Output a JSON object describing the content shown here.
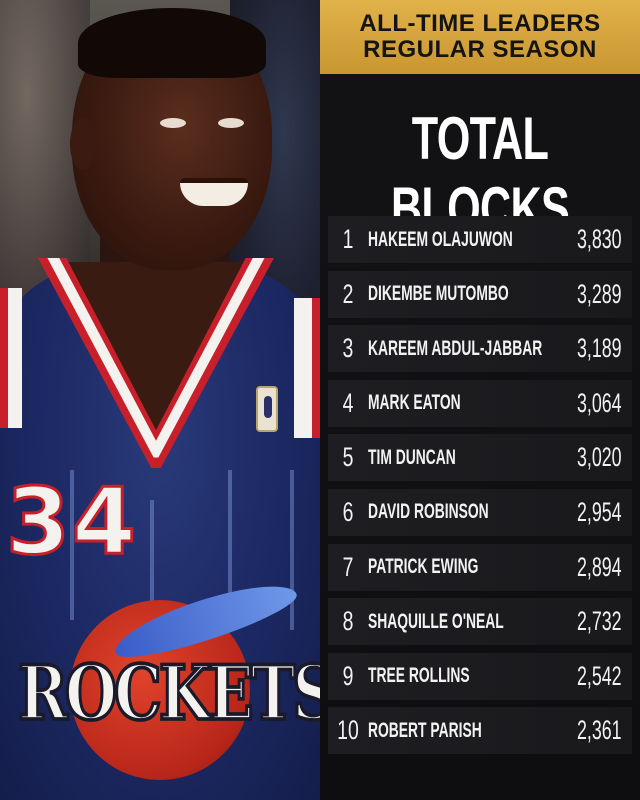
{
  "header": {
    "line1": "ALL-TIME LEADERS",
    "line2": "REGULAR SEASON"
  },
  "title": "TOTAL BLOCKS",
  "photo": {
    "jersey_number": "34",
    "team_wordmark": "ROCKETS"
  },
  "leaders": [
    {
      "rank": "1",
      "name": "HAKEEM OLAJUWON",
      "value": "3,830"
    },
    {
      "rank": "2",
      "name": "DIKEMBE MUTOMBO",
      "value": "3,289"
    },
    {
      "rank": "3",
      "name": "KAREEM ABDUL-JABBAR",
      "value": "3,189"
    },
    {
      "rank": "4",
      "name": "MARK EATON",
      "value": "3,064"
    },
    {
      "rank": "5",
      "name": "TIM DUNCAN",
      "value": "3,020"
    },
    {
      "rank": "6",
      "name": "DAVID ROBINSON",
      "value": "2,954"
    },
    {
      "rank": "7",
      "name": "PATRICK EWING",
      "value": "2,894"
    },
    {
      "rank": "8",
      "name": "SHAQUILLE O'NEAL",
      "value": "2,732"
    },
    {
      "rank": "9",
      "name": "TREE ROLLINS",
      "value": "2,542"
    },
    {
      "rank": "10",
      "name": "ROBERT PARISH",
      "value": "2,361"
    }
  ],
  "colors": {
    "header_gold": "#d9a63e",
    "panel_bg": "#121214",
    "row_bg": "#1c1c1f",
    "text": "#f2f2f2",
    "jersey_blue": "#1d2a66",
    "jersey_red": "#c8202a"
  }
}
